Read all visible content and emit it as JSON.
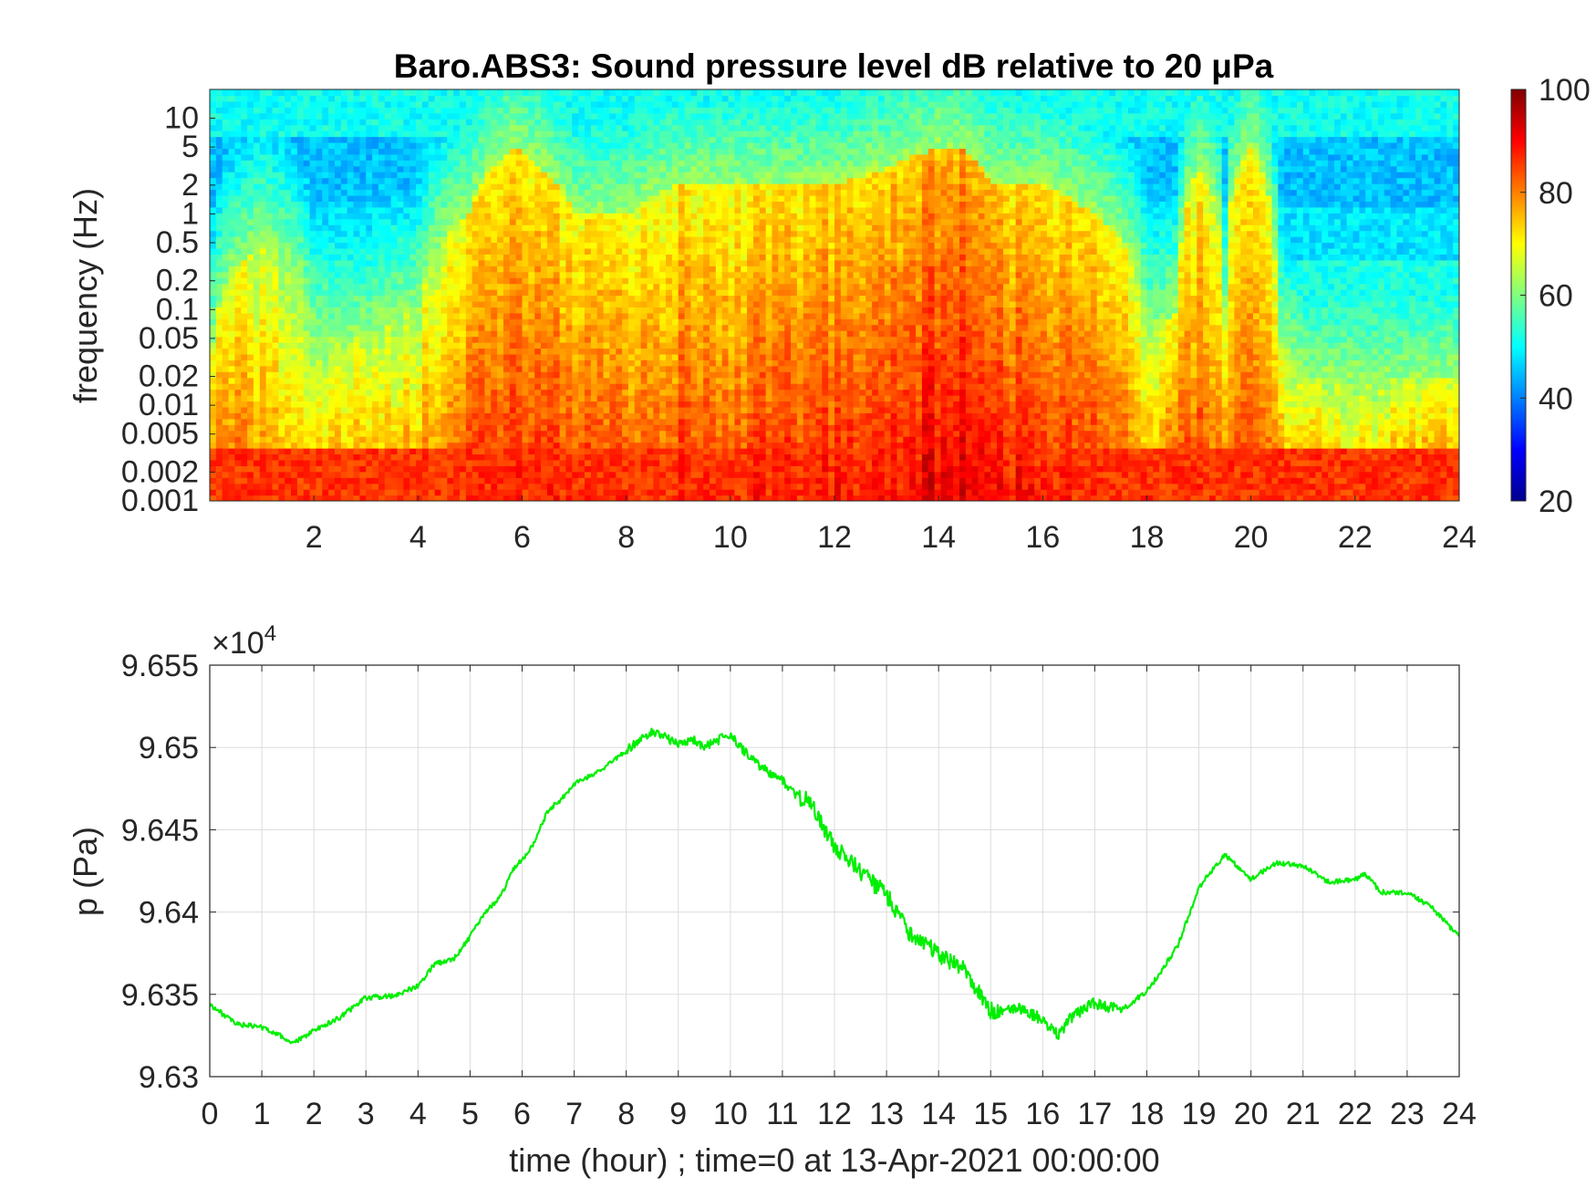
{
  "chart_data": [
    {
      "type": "heatmap",
      "title": "Baro.ABS3: Sound pressure level dB relative to 20 μPa",
      "xlabel": "",
      "ylabel": "frequency (Hz)",
      "x_range": [
        0,
        24
      ],
      "x_ticks": [
        "2",
        "4",
        "6",
        "8",
        "10",
        "12",
        "14",
        "16",
        "18",
        "20",
        "22",
        "24"
      ],
      "y_scale": "log",
      "y_range": [
        0.001,
        20
      ],
      "y_ticks": [
        "0.001",
        "0.002",
        "0.005",
        "0.01",
        "0.02",
        "0.05",
        "0.1",
        "0.2",
        "0.5",
        "1",
        "2",
        "5",
        "10"
      ],
      "colorbar": {
        "range": [
          20,
          100
        ],
        "ticks": [
          "20",
          "40",
          "60",
          "80",
          "100"
        ],
        "colormap": "jet"
      },
      "activity_envelope": {
        "hours": [
          0,
          1,
          2,
          3,
          4,
          5,
          5.8,
          7,
          8,
          9,
          10,
          11,
          12,
          13,
          14,
          14.5,
          15,
          16,
          17,
          18,
          18.6,
          19,
          19.5,
          20,
          20.5,
          21,
          22,
          23,
          24
        ],
        "upper_freq_hz": [
          0.02,
          0.5,
          0.05,
          0.05,
          0.1,
          1,
          5,
          1,
          1,
          2,
          2,
          2,
          2,
          3,
          5,
          5,
          2,
          2,
          1,
          0.05,
          0.1,
          3,
          0.1,
          5,
          0.05,
          0.02,
          0.02,
          0.02,
          0.02
        ],
        "peak_level_db": [
          85,
          80,
          78,
          80,
          80,
          85,
          88,
          86,
          85,
          86,
          86,
          87,
          88,
          89,
          92,
          92,
          90,
          89,
          87,
          80,
          84,
          86,
          82,
          86,
          80,
          80,
          78,
          80,
          82
        ]
      },
      "grid": false
    },
    {
      "type": "line",
      "title": "",
      "xlabel": "time (hour) ; time=0 at 13-Apr-2021 00:00:00",
      "ylabel": "p (Pa)",
      "y_exponent_label": "×10^4",
      "x_range": [
        0,
        24
      ],
      "y_range": [
        9.63,
        9.655
      ],
      "x_ticks": [
        "0",
        "1",
        "2",
        "3",
        "4",
        "5",
        "6",
        "7",
        "8",
        "9",
        "10",
        "11",
        "12",
        "13",
        "14",
        "15",
        "16",
        "17",
        "18",
        "19",
        "20",
        "21",
        "22",
        "23",
        "24"
      ],
      "y_ticks": [
        "9.63",
        "9.635",
        "9.64",
        "9.645",
        "9.65",
        "9.655"
      ],
      "grid": true,
      "series": [
        {
          "color": "#00ee00",
          "x": [
            0,
            0.5,
            1,
            1.3,
            1.6,
            2,
            2.5,
            3,
            3.5,
            4,
            4.3,
            4.7,
            5,
            5.3,
            5.6,
            5.8,
            6,
            6.2,
            6.5,
            6.8,
            7,
            7.5,
            8,
            8.5,
            9,
            9.3,
            9.5,
            10,
            10.2,
            10.5,
            11,
            11.3,
            11.5,
            12,
            12.5,
            13,
            13.5,
            14,
            14.5,
            15,
            15.5,
            16,
            16.3,
            16.5,
            17,
            17.5,
            18,
            18.3,
            18.6,
            19,
            19.5,
            20,
            20.5,
            21,
            21.5,
            22,
            22.2,
            22.5,
            23,
            23.5,
            24
          ],
          "y": [
            9.6344,
            9.6332,
            9.633,
            9.6326,
            9.632,
            9.6328,
            9.6336,
            9.6348,
            9.6349,
            9.6355,
            9.6368,
            9.6372,
            9.6385,
            9.64,
            9.641,
            9.6425,
            9.6432,
            9.644,
            9.6462,
            9.647,
            9.6478,
            9.6486,
            9.6498,
            9.651,
            9.6502,
            9.6505,
            9.65,
            9.6508,
            9.65,
            9.649,
            9.648,
            9.647,
            9.6468,
            9.644,
            9.6425,
            9.641,
            9.6385,
            9.6375,
            9.6365,
            9.634,
            9.6342,
            9.6335,
            9.6325,
            9.6335,
            9.6345,
            9.634,
            9.6352,
            9.6365,
            9.638,
            9.6415,
            9.6435,
            9.642,
            9.643,
            9.6428,
            9.6418,
            9.642,
            9.6423,
            9.6412,
            9.6412,
            9.6402,
            9.6385
          ]
        }
      ]
    }
  ]
}
